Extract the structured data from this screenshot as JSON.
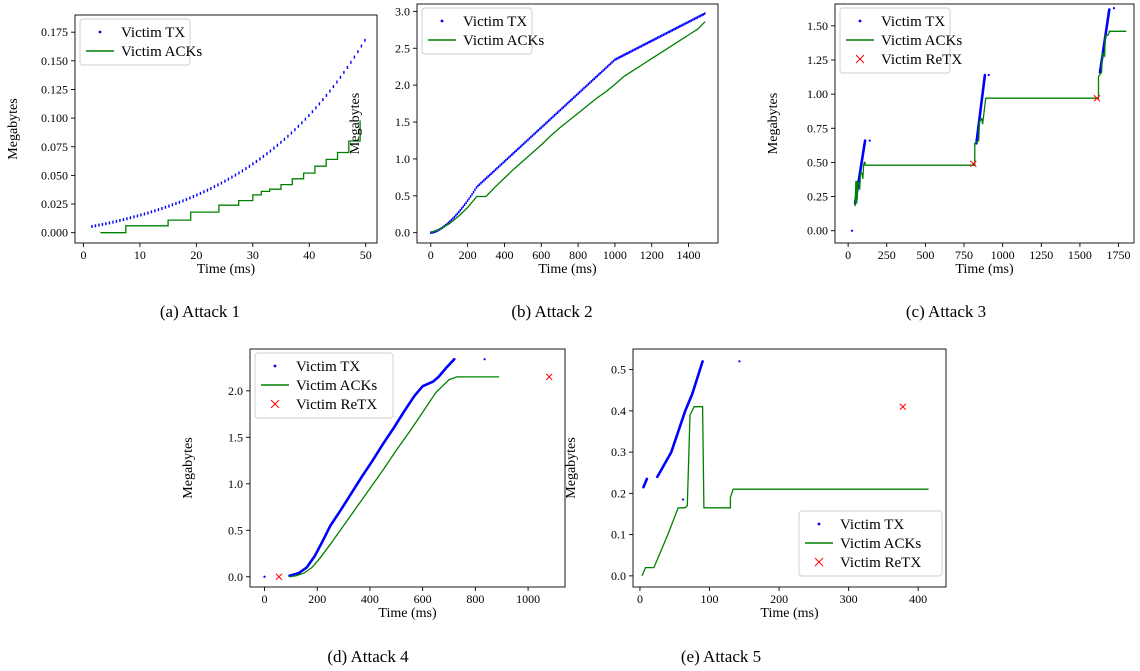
{
  "figure": {
    "panels": [
      {
        "id": "a",
        "caption": "(a) Attack 1"
      },
      {
        "id": "b",
        "caption": "(b) Attack 2"
      },
      {
        "id": "c",
        "caption": "(c) Attack 3"
      },
      {
        "id": "d",
        "caption": "(d) Attack 4"
      },
      {
        "id": "e",
        "caption": "(e) Attack 5"
      }
    ]
  },
  "chart_data": [
    {
      "type": "line",
      "caption": "(a) Attack 1",
      "xlabel": "Time (ms)",
      "ylabel": "Megabytes",
      "xlim": [
        -1.5,
        52
      ],
      "ylim": [
        -0.009,
        0.19
      ],
      "xticks": [
        0,
        10,
        20,
        30,
        40,
        50
      ],
      "yticks": [
        0.0,
        0.025,
        0.05,
        0.075,
        0.1,
        0.125,
        0.15,
        0.175
      ],
      "ytick_labels": [
        "0.000",
        "0.025",
        "0.050",
        "0.075",
        "0.100",
        "0.125",
        "0.150",
        "0.175"
      ],
      "grid": false,
      "legend": {
        "location": "top-left",
        "entries": [
          "Victim TX",
          "Victim ACKs"
        ]
      },
      "series": [
        {
          "name": "Victim TX",
          "style": "dots",
          "color": "#0000ff",
          "gen": "tx_a"
        },
        {
          "name": "Victim ACKs",
          "style": "step",
          "color": "#008000",
          "x": [
            3,
            7.5,
            7.5,
            15,
            15,
            19,
            19,
            24,
            24,
            27.5,
            27.5,
            30,
            30,
            31.5,
            31.5,
            33,
            33,
            35,
            35,
            37,
            37,
            39,
            39,
            41,
            41,
            43,
            43,
            45,
            45,
            47,
            47,
            49,
            49
          ],
          "y": [
            0,
            0,
            0.006,
            0.006,
            0.011,
            0.011,
            0.018,
            0.018,
            0.024,
            0.024,
            0.028,
            0.028,
            0.033,
            0.033,
            0.036,
            0.036,
            0.038,
            0.038,
            0.042,
            0.042,
            0.047,
            0.047,
            0.052,
            0.052,
            0.058,
            0.058,
            0.064,
            0.064,
            0.07,
            0.07,
            0.08,
            0.08,
            0.098
          ]
        }
      ]
    },
    {
      "type": "line",
      "caption": "(b) Attack 2",
      "xlabel": "Time (ms)",
      "ylabel": "Megabytes",
      "xlim": [
        -75,
        1560
      ],
      "ylim": [
        -0.14,
        3.1
      ],
      "xticks": [
        0,
        200,
        400,
        600,
        800,
        1000,
        1200,
        1400
      ],
      "yticks": [
        0.0,
        0.5,
        1.0,
        1.5,
        2.0,
        2.5,
        3.0
      ],
      "ytick_labels": [
        "0.0",
        "0.5",
        "1.0",
        "1.5",
        "2.0",
        "2.5",
        "3.0"
      ],
      "grid": false,
      "legend": {
        "location": "top-left",
        "entries": [
          "Victim TX",
          "Victim ACKs"
        ]
      },
      "series": [
        {
          "name": "Victim TX",
          "style": "dots",
          "color": "#0000ff",
          "gen": "tx_b"
        },
        {
          "name": "Victim ACKs",
          "style": "line",
          "color": "#008000",
          "x": [
            0,
            50,
            100,
            150,
            200,
            250,
            300,
            350,
            400,
            450,
            500,
            550,
            600,
            650,
            700,
            750,
            800,
            850,
            900,
            950,
            1000,
            1050,
            1100,
            1150,
            1200,
            1250,
            1300,
            1350,
            1400,
            1450,
            1490
          ],
          "y": [
            0,
            0.05,
            0.12,
            0.22,
            0.34,
            0.49,
            0.49,
            0.62,
            0.74,
            0.86,
            0.97,
            1.08,
            1.19,
            1.31,
            1.42,
            1.52,
            1.62,
            1.72,
            1.82,
            1.91,
            2.01,
            2.12,
            2.2,
            2.28,
            2.36,
            2.44,
            2.52,
            2.6,
            2.68,
            2.76,
            2.86
          ]
        }
      ]
    },
    {
      "type": "line",
      "caption": "(c) Attack 3",
      "xlabel": "Time (ms)",
      "ylabel": "Megabytes",
      "xlim": [
        -85,
        1850
      ],
      "ylim": [
        -0.09,
        1.66
      ],
      "xticks": [
        0,
        250,
        500,
        750,
        1000,
        1250,
        1500,
        1750
      ],
      "yticks": [
        0.0,
        0.25,
        0.5,
        0.75,
        1.0,
        1.25,
        1.5
      ],
      "ytick_labels": [
        "0.00",
        "0.25",
        "0.50",
        "0.75",
        "1.00",
        "1.25",
        "1.50"
      ],
      "grid": false,
      "legend": {
        "location": "top-left",
        "entries": [
          "Victim TX",
          "Victim ACKs",
          "Victim ReTX"
        ]
      },
      "series": [
        {
          "name": "Victim TX",
          "style": "dots",
          "color": "#0000ff",
          "segments": [
            [
              [
                45,
                0.2
              ],
              [
                110,
                0.66
              ]
            ],
            [
              [
                830,
                0.64
              ],
              [
                885,
                1.14
              ]
            ],
            [
              [
                1630,
                1.16
              ],
              [
                1690,
                1.62
              ]
            ]
          ],
          "points": [
            [
              25,
              0.0
            ],
            [
              140,
              0.66
            ],
            [
              910,
              1.14
            ],
            [
              1720,
              1.63
            ]
          ]
        },
        {
          "name": "Victim ACKs",
          "style": "line",
          "color": "#008000",
          "x": [
            45,
            50,
            55,
            55,
            60,
            60,
            70,
            75,
            80,
            90,
            95,
            100,
            105,
            110,
            110,
            820,
            820,
            845,
            850,
            865,
            870,
            885,
            890,
            890,
            1620,
            1620,
            1640,
            1645,
            1660,
            1665,
            1680,
            1690,
            1690,
            1800
          ],
          "y": [
            0.18,
            0.36,
            0.36,
            0.2,
            0.25,
            0.35,
            0.35,
            0.3,
            0.42,
            0.42,
            0.38,
            0.48,
            0.5,
            0.5,
            0.48,
            0.48,
            0.64,
            0.66,
            0.8,
            0.82,
            0.78,
            0.92,
            0.97,
            0.97,
            0.97,
            1.13,
            1.16,
            1.3,
            1.28,
            1.43,
            1.43,
            1.45,
            1.46,
            1.46
          ]
        },
        {
          "name": "Victim ReTX",
          "style": "x",
          "color": "#ff0000",
          "points": [
            [
              810,
              0.49
            ],
            [
              1610,
              0.97
            ]
          ]
        }
      ]
    },
    {
      "type": "line",
      "caption": "(d) Attack 4",
      "xlabel": "Time (ms)",
      "ylabel": "Megabytes",
      "xlim": [
        -55,
        1140
      ],
      "ylim": [
        -0.11,
        2.45
      ],
      "xticks": [
        0,
        200,
        400,
        600,
        800,
        1000
      ],
      "yticks": [
        0.0,
        0.5,
        1.0,
        1.5,
        2.0
      ],
      "ytick_labels": [
        "0.0",
        "0.5",
        "1.0",
        "1.5",
        "2.0"
      ],
      "grid": false,
      "legend": {
        "location": "top-left",
        "entries": [
          "Victim TX",
          "Victim ACKs",
          "Victim ReTX"
        ]
      },
      "series": [
        {
          "name": "Victim TX",
          "style": "dots",
          "color": "#0000ff",
          "x": [
            95,
            130,
            160,
            190,
            220,
            250,
            290,
            330,
            370,
            410,
            450,
            490,
            530,
            570,
            600,
            640,
            660,
            690,
            720
          ],
          "y": [
            0.01,
            0.04,
            0.1,
            0.22,
            0.38,
            0.55,
            0.72,
            0.9,
            1.08,
            1.25,
            1.43,
            1.6,
            1.78,
            1.95,
            2.05,
            2.1,
            2.15,
            2.25,
            2.34
          ],
          "points": [
            [
              0,
              0.0
            ],
            [
              835,
              2.34
            ]
          ]
        },
        {
          "name": "Victim ACKs",
          "style": "line",
          "color": "#008000",
          "x": [
            95,
            120,
            150,
            180,
            210,
            250,
            300,
            350,
            400,
            450,
            500,
            550,
            600,
            650,
            700,
            730,
            890
          ],
          "y": [
            0.0,
            0.01,
            0.04,
            0.1,
            0.2,
            0.35,
            0.55,
            0.75,
            0.95,
            1.15,
            1.36,
            1.56,
            1.77,
            1.98,
            2.12,
            2.15,
            2.15
          ]
        },
        {
          "name": "Victim ReTX",
          "style": "x",
          "color": "#ff0000",
          "points": [
            [
              55,
              0.0
            ],
            [
              1080,
              2.15
            ]
          ]
        }
      ]
    },
    {
      "type": "line",
      "caption": "(e) Attack 5",
      "xlabel": "Time (ms)",
      "ylabel": "Megabytes",
      "xlim": [
        -10,
        440
      ],
      "ylim": [
        -0.027,
        0.55
      ],
      "xticks": [
        0,
        100,
        200,
        300,
        400
      ],
      "yticks": [
        0.0,
        0.1,
        0.2,
        0.3,
        0.4,
        0.5
      ],
      "ytick_labels": [
        "0.0",
        "0.1",
        "0.2",
        "0.3",
        "0.4",
        "0.5"
      ],
      "grid": false,
      "legend": {
        "location": "bottom-right",
        "entries": [
          "Victim TX",
          "Victim ACKs",
          "Victim ReTX"
        ]
      },
      "series": [
        {
          "name": "Victim TX",
          "style": "dots",
          "color": "#0000ff",
          "segments": [
            [
              [
                5,
                0.215
              ],
              [
                10,
                0.235
              ]
            ],
            [
              [
                25,
                0.24
              ],
              [
                45,
                0.3
              ],
              [
                65,
                0.4
              ],
              [
                75,
                0.44
              ],
              [
                90,
                0.52
              ]
            ]
          ],
          "points": [
            [
              62,
              0.185
            ],
            [
              143,
              0.52
            ]
          ]
        },
        {
          "name": "Victim ACKs",
          "style": "line",
          "color": "#008000",
          "x": [
            3,
            8,
            20,
            40,
            55,
            65,
            68,
            72,
            78,
            90,
            92,
            92,
            130,
            130,
            134,
            415
          ],
          "y": [
            0.0,
            0.02,
            0.02,
            0.1,
            0.165,
            0.165,
            0.17,
            0.39,
            0.41,
            0.41,
            0.165,
            0.165,
            0.165,
            0.19,
            0.21,
            0.21
          ]
        },
        {
          "name": "Victim ReTX",
          "style": "x",
          "color": "#ff0000",
          "points": [
            [
              378,
              0.41
            ]
          ]
        }
      ]
    }
  ]
}
